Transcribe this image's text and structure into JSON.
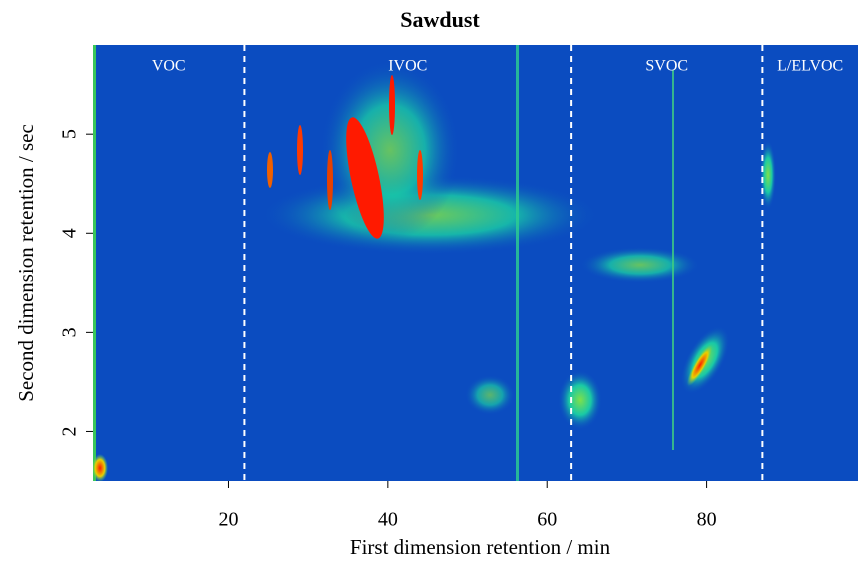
{
  "chart_data": {
    "type": "heatmap",
    "title": "Sawdust",
    "xlabel": "First dimension retention / min",
    "ylabel": "Second dimension retention / sec",
    "xlim": [
      3,
      99
    ],
    "ylim": [
      1.5,
      5.9
    ],
    "xticks": [
      20,
      40,
      60,
      80
    ],
    "yticks": [
      2,
      3,
      4,
      5
    ],
    "regions": {
      "labels": [
        "VOC",
        "IVOC",
        "SVOC",
        "L/ELVOC"
      ],
      "boundaries": [
        22,
        63,
        87
      ]
    },
    "background": "#0b4cc0"
  }
}
